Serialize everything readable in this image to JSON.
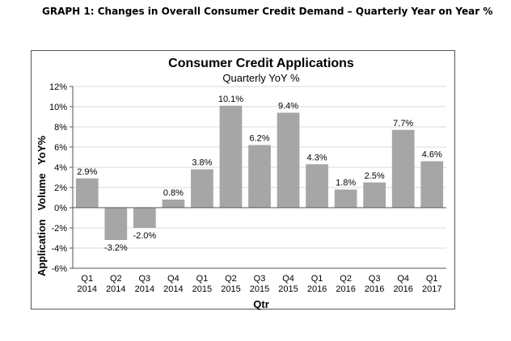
{
  "page": {
    "heading": "GRAPH 1: Changes in Overall Consumer Credit Demand – Quarterly Year on Year %"
  },
  "colors": {
    "bar": "#a6a6a6",
    "frame": "#555555",
    "gridline": "#d9d9d9",
    "text": "#000000"
  },
  "chart_data": {
    "type": "bar",
    "title": "Consumer Credit Applications",
    "subtitle": "Quarterly YoY %",
    "xlabel": "Qtr",
    "ylabel": "Application   Volume   YoY%",
    "ylim": [
      -6,
      12
    ],
    "yticks": [
      -6,
      -4,
      -2,
      0,
      2,
      4,
      6,
      8,
      10,
      12
    ],
    "ytick_suffix": "%",
    "grid": true,
    "categories": [
      [
        "Q1",
        "2014"
      ],
      [
        "Q2",
        "2014"
      ],
      [
        "Q3",
        "2014"
      ],
      [
        "Q4",
        "2014"
      ],
      [
        "Q1",
        "2015"
      ],
      [
        "Q2",
        "2015"
      ],
      [
        "Q3",
        "2015"
      ],
      [
        "Q4",
        "2015"
      ],
      [
        "Q1",
        "2016"
      ],
      [
        "Q2",
        "2016"
      ],
      [
        "Q3",
        "2016"
      ],
      [
        "Q4",
        "2016"
      ],
      [
        "Q1",
        "2017"
      ]
    ],
    "values": [
      2.9,
      -3.2,
      -2.0,
      0.8,
      3.8,
      10.1,
      6.2,
      9.4,
      4.3,
      1.8,
      2.5,
      7.7,
      4.6
    ],
    "data_labels": [
      "2.9%",
      "-3.2%",
      "-2.0%",
      "0.8%",
      "3.8%",
      "10.1%",
      "6.2%",
      "9.4%",
      "4.3%",
      "1.8%",
      "2.5%",
      "7.7%",
      "4.6%"
    ]
  }
}
